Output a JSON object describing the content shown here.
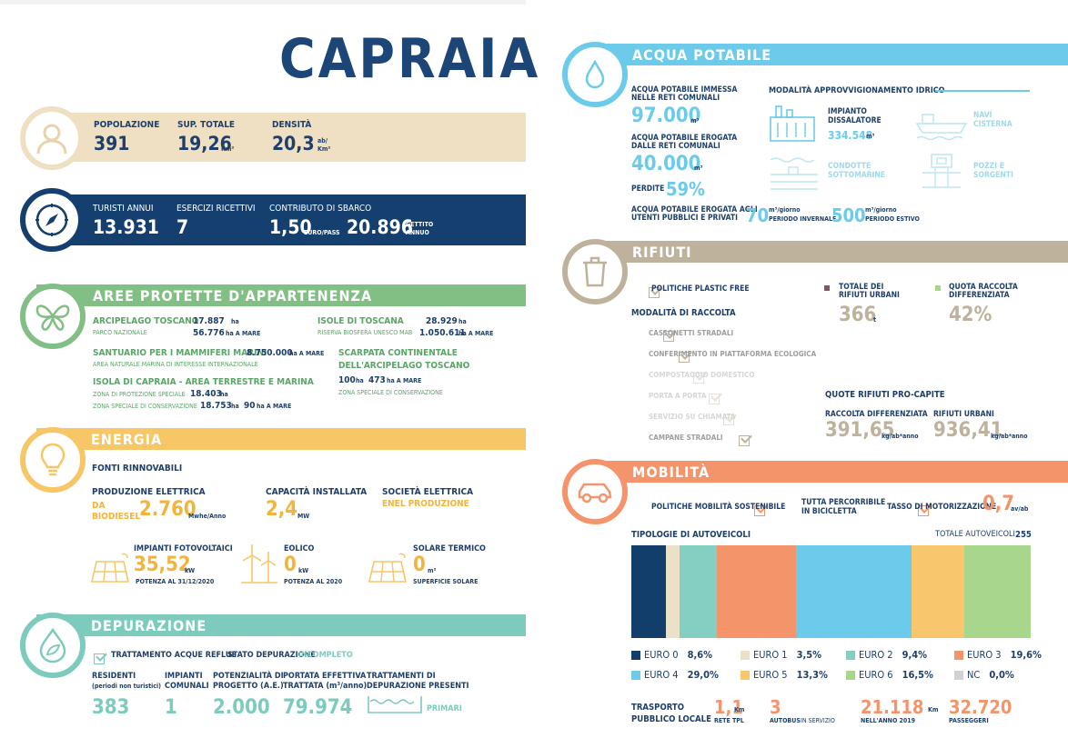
{
  "title": "CAPRAIA",
  "pop": {
    "popolazione_l": "POPOLAZIONE",
    "popolazione": "391",
    "sup_l": "SUP. TOTALE",
    "sup": "19,26",
    "sup_u": "Km²",
    "dens_l": "DENSITÀ",
    "dens": "20,3",
    "dens_u1": "ab/",
    "dens_u2": "Km²"
  },
  "tur": {
    "turisti_l": "TURISTI ANNUI",
    "turisti": "13.931",
    "eserc_l": "ESERCIZI RICETTIVI",
    "eserc": "7",
    "contr_l": "CONTRIBUTO DI SBARCO",
    "contr": "1,50",
    "contr_u": "EURO/PASS",
    "gettito": "20.896",
    "gettito_u1": "GETTITO",
    "gettito_u2": "ANNUO"
  },
  "aree": {
    "title": "AREE PROTETTE D'APPARTENENZA",
    "arc_t": "ARCIPELAGO TOSCANO",
    "arc_s": "PARCO NAZIONALE",
    "arc_v1": "17.887",
    "arc_u1": "ha",
    "arc_v2": "56.776",
    "arc_u2": "ha A MARE",
    "iso_t": "ISOLE DI TOSCANA",
    "iso_s": "RISERVA BIOSFERA UNESCO MAB",
    "iso_v1": "28.929",
    "iso_u1": "ha",
    "iso_v2": "1.050.611",
    "iso_u2": "ha A MARE",
    "san_t": "SANTUARIO PER I MAMMIFERI MARINI",
    "san_v": "8.750.000",
    "san_u": "ha A MARE",
    "san_s": "AREA NATURALE MARINA DI INTERESSE INTERNAZIONALE",
    "sca_t1": "SCARPATA CONTINENTALE",
    "sca_t2": "DELL'ARCIPELAGO TOSCANO",
    "sca_v1": "100",
    "sca_u1": "ha",
    "sca_v2": "473",
    "sca_u2": "ha A MARE",
    "sca_s": "ZONA SPECIALE DI CONSERVAZIONE",
    "cap_t": "ISOLA DI CAPRAIA - AREA TERRESTRE E MARINA",
    "cap_s1": "ZONA DI PROTEZIONE SPECIALE",
    "cap_v1": "18.403",
    "cap_u1": "ha",
    "cap_s2": "ZONA SPECIALE DI CONSERVAZIONE",
    "cap_v2": "18.753",
    "cap_u2": "ha",
    "cap_v3": "90",
    "cap_u3": "ha A MARE"
  },
  "energia": {
    "title": "ENERGIA",
    "fonti": "FONTI RINNOVABILI",
    "prod_l": "PRODUZIONE ELETTRICA",
    "prod_src1": "DA",
    "prod_src2": "BIODIESEL",
    "prod_v": "2.760",
    "prod_u": "Mwhe/Anno",
    "cap_l": "CAPACITÀ INSTALLATA",
    "cap_v": "2,4",
    "cap_u": "MW",
    "soc_l": "SOCIETÀ ELETTRICA",
    "soc_v": "ENEL PRODUZIONE",
    "fv_l": "IMPIANTI FOTOVOLTAICI",
    "fv_v": "35,52",
    "fv_u": "kW",
    "fv_s": "POTENZA AL 31/12/2020",
    "eol_l": "EOLICO",
    "eol_v": "0",
    "eol_u": "kW",
    "eol_s": "POTENZA AL 2020",
    "sol_l": "SOLARE TERMICO",
    "sol_v": "0",
    "sol_u": "m²",
    "sol_s": "SUPERFICIE SOLARE"
  },
  "dep": {
    "title": "DEPURAZIONE",
    "tratt": "TRATTAMENTO ACQUE REFLUE",
    "stato_l": "STATO DEPURAZIONE",
    "stato_v": "INCOMPLETO",
    "res_l": "RESIDENTI",
    "res_s": "(periodi non turistici)",
    "res_v": "383",
    "imp_l1": "IMPIANTI",
    "imp_l2": "COMUNALI",
    "imp_v": "1",
    "pot_l1": "POTENZIALITÀ DI",
    "pot_l2": "PROGETTO (A.E.)",
    "pot_v": "2.000",
    "port_l1": "PORTATA EFFETTIVA",
    "port_l2": "TRATTATA (m³/anno)",
    "port_v": "79.974",
    "tr_l1": "TRATTAMENTI DI",
    "tr_l2": "DEPURAZIONE PRESENTI",
    "tr_v": "PRIMARI"
  },
  "acqua": {
    "title": "ACQUA POTABILE",
    "imm_l1": "ACQUA POTABILE IMMESSA",
    "imm_l2": "NELLE RETI COMUNALI",
    "imm_v": "97.000",
    "imm_u": "m³",
    "ero_l1": "ACQUA POTABILE EROGATA",
    "ero_l2": "DALLE RETI COMUNALI",
    "ero_v": "40.000",
    "ero_u": "m³",
    "perd_l": "PERDITE",
    "perd_v": "59%",
    "ute_l1": "ACQUA POTABILE EROGATA AGLI",
    "ute_l2": "UTENTI PUBBLICI E PRIVATI",
    "inv_v": "70",
    "inv_u": "m³/giorno",
    "inv_s": "PERIODO INVERNALE",
    "est_v": "500",
    "est_u": "m³/giorno",
    "est_s": "PERIODO ESTIVO",
    "mod_l": "MODALITÀ APPROVVIGIONAMENTO IDRICO",
    "diss_l1": "IMPIANTO",
    "diss_l2": "DISSALATORE",
    "diss_v": "334.548",
    "diss_u": "m³",
    "navi_l1": "NAVI",
    "navi_l2": "CISTERNA",
    "cond_l1": "CONDOTTE",
    "cond_l2": "SOTTOMARINE",
    "pozzi_l1": "POZZI E",
    "pozzi_l2": "SORGENTI"
  },
  "rifiuti": {
    "title": "RIFIUTI",
    "plastic": "POLITICHE PLASTIC FREE",
    "mod": "MODALITÀ DI RACCOLTA",
    "items": [
      "CASSONETTI STRADALI",
      "CONFERIMENTO IN PIATTAFORMA ECOLOGICA",
      "COMPOSTAGGIO DOMESTICO",
      "PORTA A PORTA",
      "SERVIZIO SU CHIAMATA",
      "CAMPANE STRADALI"
    ],
    "tot_l1": "TOTALE DEI",
    "tot_l2": "RIFIUTI URBANI",
    "tot_v": "366",
    "tot_u": "t",
    "quota_l1": "QUOTA RACCOLTA",
    "quota_l2": "DIFFERENZIATA",
    "quota_v": "42%",
    "pc_l": "QUOTE RIFIUTI PRO-CAPITE",
    "rd_l": "RACCOLTA DIFFERENZIATA",
    "rd_v": "391,65",
    "rd_u": "kg/ab*anno",
    "ru_l": "RIFIUTI URBANI",
    "ru_v": "936,41",
    "ru_u": "kg/ab*anno"
  },
  "mob": {
    "title": "MOBILITÀ",
    "pol": "POLITICHE MOBILITÀ SOSTENIBILE",
    "bici1": "TUTTA PERCORRIBILE",
    "bici2": "IN BICICLETTA",
    "tasso_l": "TASSO DI MOTORIZZAZIONE",
    "tasso_v": "0,7",
    "tasso_u": "av/ab",
    "tip_l": "TIPOLOGIE DI AUTOVEICOLI",
    "tot_l": "TOTALE AUTOVEICOLI",
    "tot_v": "255",
    "tpl_l1": "TRASPORTO",
    "tpl_l2": "PUBBLICO LOCALE",
    "rete_v": "1,1",
    "rete_u": "Km",
    "rete_s": "RETE TPL",
    "bus_v": "3",
    "bus_s1": "AUTOBUS",
    "bus_s2": "IN SERVIZIO",
    "km_v": "21.118",
    "km_u": "Km",
    "km_s": "NELL'ANNO 2019",
    "pass_v": "32.720",
    "pass_s": "PASSEGGERI"
  },
  "chart_data": {
    "type": "bar",
    "stacked": true,
    "title": "TIPOLOGIE DI AUTOVEICOLI",
    "categories": [
      "EURO 0",
      "EURO 1",
      "EURO 2",
      "EURO 3",
      "EURO 4",
      "EURO 5",
      "EURO 6",
      "NC"
    ],
    "values": [
      8.6,
      3.5,
      9.4,
      19.6,
      29.0,
      13.3,
      16.5,
      0.0
    ],
    "labels": [
      "8,6%",
      "3,5%",
      "9,4%",
      "19,6%",
      "29,0%",
      "13,3%",
      "16,5%",
      "0,0%"
    ],
    "colors": [
      "#123e6b",
      "#ebe0c8",
      "#84cfc2",
      "#f4946b",
      "#6ccbea",
      "#f8c66d",
      "#a9d68d",
      "#cfd1d3"
    ],
    "total": 255
  }
}
